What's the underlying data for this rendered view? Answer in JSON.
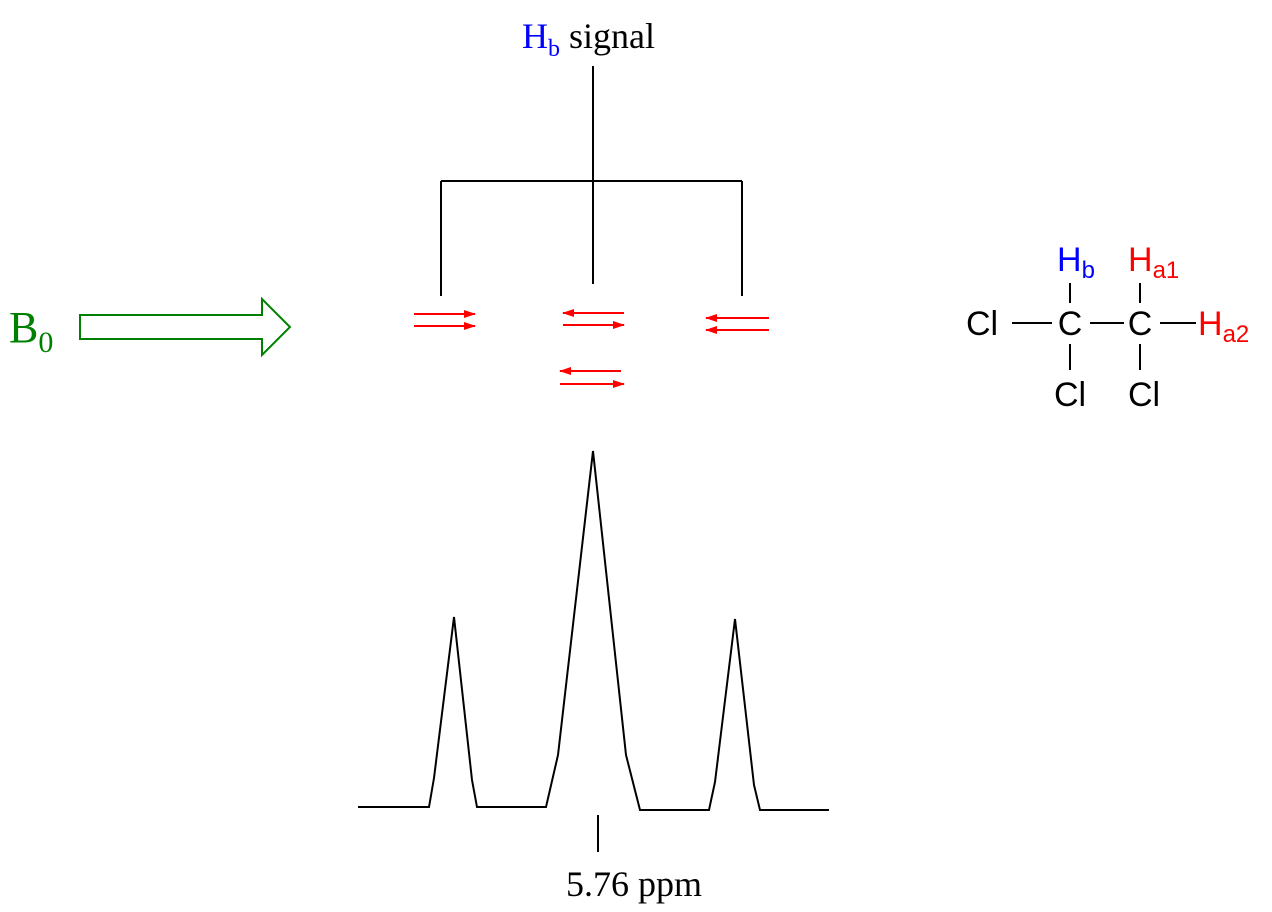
{
  "signal_label": {
    "prefix": "H",
    "subscript": "b",
    "suffix": "signal"
  },
  "field_label": {
    "prefix": "B",
    "subscript": "0"
  },
  "ppm_label": "5.76 ppm",
  "colors": {
    "hb": "#0000ff",
    "ha": "#ff0000",
    "field": "#008000",
    "line": "#000000",
    "spin_arrows": "#ff0000"
  },
  "spin_states": [
    [
      "right-right"
    ],
    [
      "left-right",
      "left-right"
    ],
    [
      "left-left"
    ]
  ],
  "splitting": {
    "type": "triplet",
    "lines": 3,
    "intensity_ratio": [
      1,
      2,
      1
    ]
  },
  "molecule": {
    "atoms": {
      "cl_left": "Cl",
      "c1": "C",
      "c2": "C",
      "cl_bottom_1": "Cl",
      "cl_bottom_2": "Cl",
      "hb": {
        "prefix": "H",
        "subscript": "b"
      },
      "ha1": {
        "prefix": "H",
        "subscript": "a1"
      },
      "ha2": {
        "prefix": "H",
        "subscript": "a2"
      }
    }
  }
}
